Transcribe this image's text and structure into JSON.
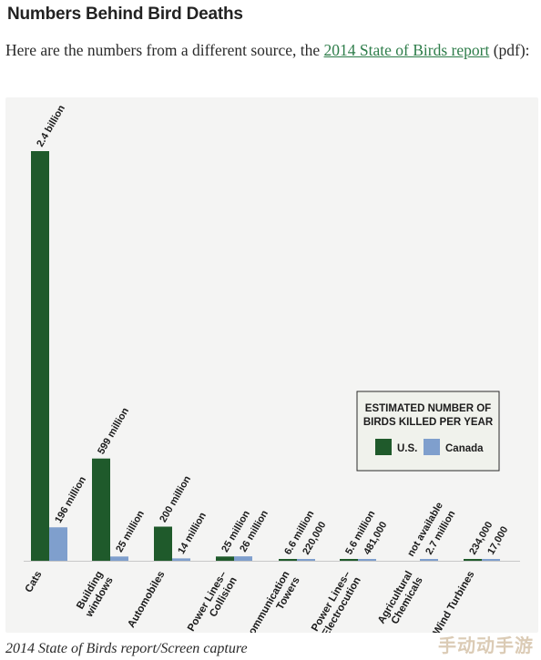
{
  "article": {
    "headline": "Numbers Behind Bird Deaths",
    "intro_before": "Here are the numbers from a different source, the ",
    "intro_link": "2014 State of Birds report",
    "intro_after": " (pdf):",
    "caption": "2014 State of Birds report/Screen capture",
    "watermark": "手动动手游"
  },
  "colors": {
    "us": "#1f5a2b",
    "canada": "#7f9fcd",
    "link": "#2e7d4a",
    "legend_bg": "#f0f2ec"
  },
  "chart_data": {
    "type": "bar",
    "title": "",
    "legend_title_line1": "ESTIMATED NUMBER OF",
    "legend_title_line2": "BIRDS KILLED PER YEAR",
    "legend_position": "right-center",
    "categories": [
      [
        "Cats"
      ],
      [
        "Building",
        "windows"
      ],
      [
        "Automobiles"
      ],
      [
        "Power Lines–",
        "Collision"
      ],
      [
        "Communication",
        "Towers"
      ],
      [
        "Power Lines–",
        "Electrocution"
      ],
      [
        "Agricultural",
        "Chemicals"
      ],
      [
        "Wind Turbines"
      ]
    ],
    "series": [
      {
        "name": "U.S.",
        "values": [
          2400,
          599,
          200,
          25,
          6.6,
          5.6,
          null,
          0.234
        ],
        "labels": [
          "2.4 billion",
          "599 million",
          "200 million",
          "25 million",
          "6.6 million",
          "5.6 million",
          "not available",
          "234,000"
        ]
      },
      {
        "name": "Canada",
        "values": [
          196,
          25,
          14,
          26,
          0.22,
          0.481,
          2.7,
          0.017
        ],
        "labels": [
          "196 million",
          "25 million",
          "14 million",
          "26 million",
          "220,000",
          "481,000",
          "2.7 million",
          "17,000"
        ]
      }
    ],
    "unit": "millions of birds",
    "ylim": [
      0,
      2400
    ],
    "grid": false
  }
}
